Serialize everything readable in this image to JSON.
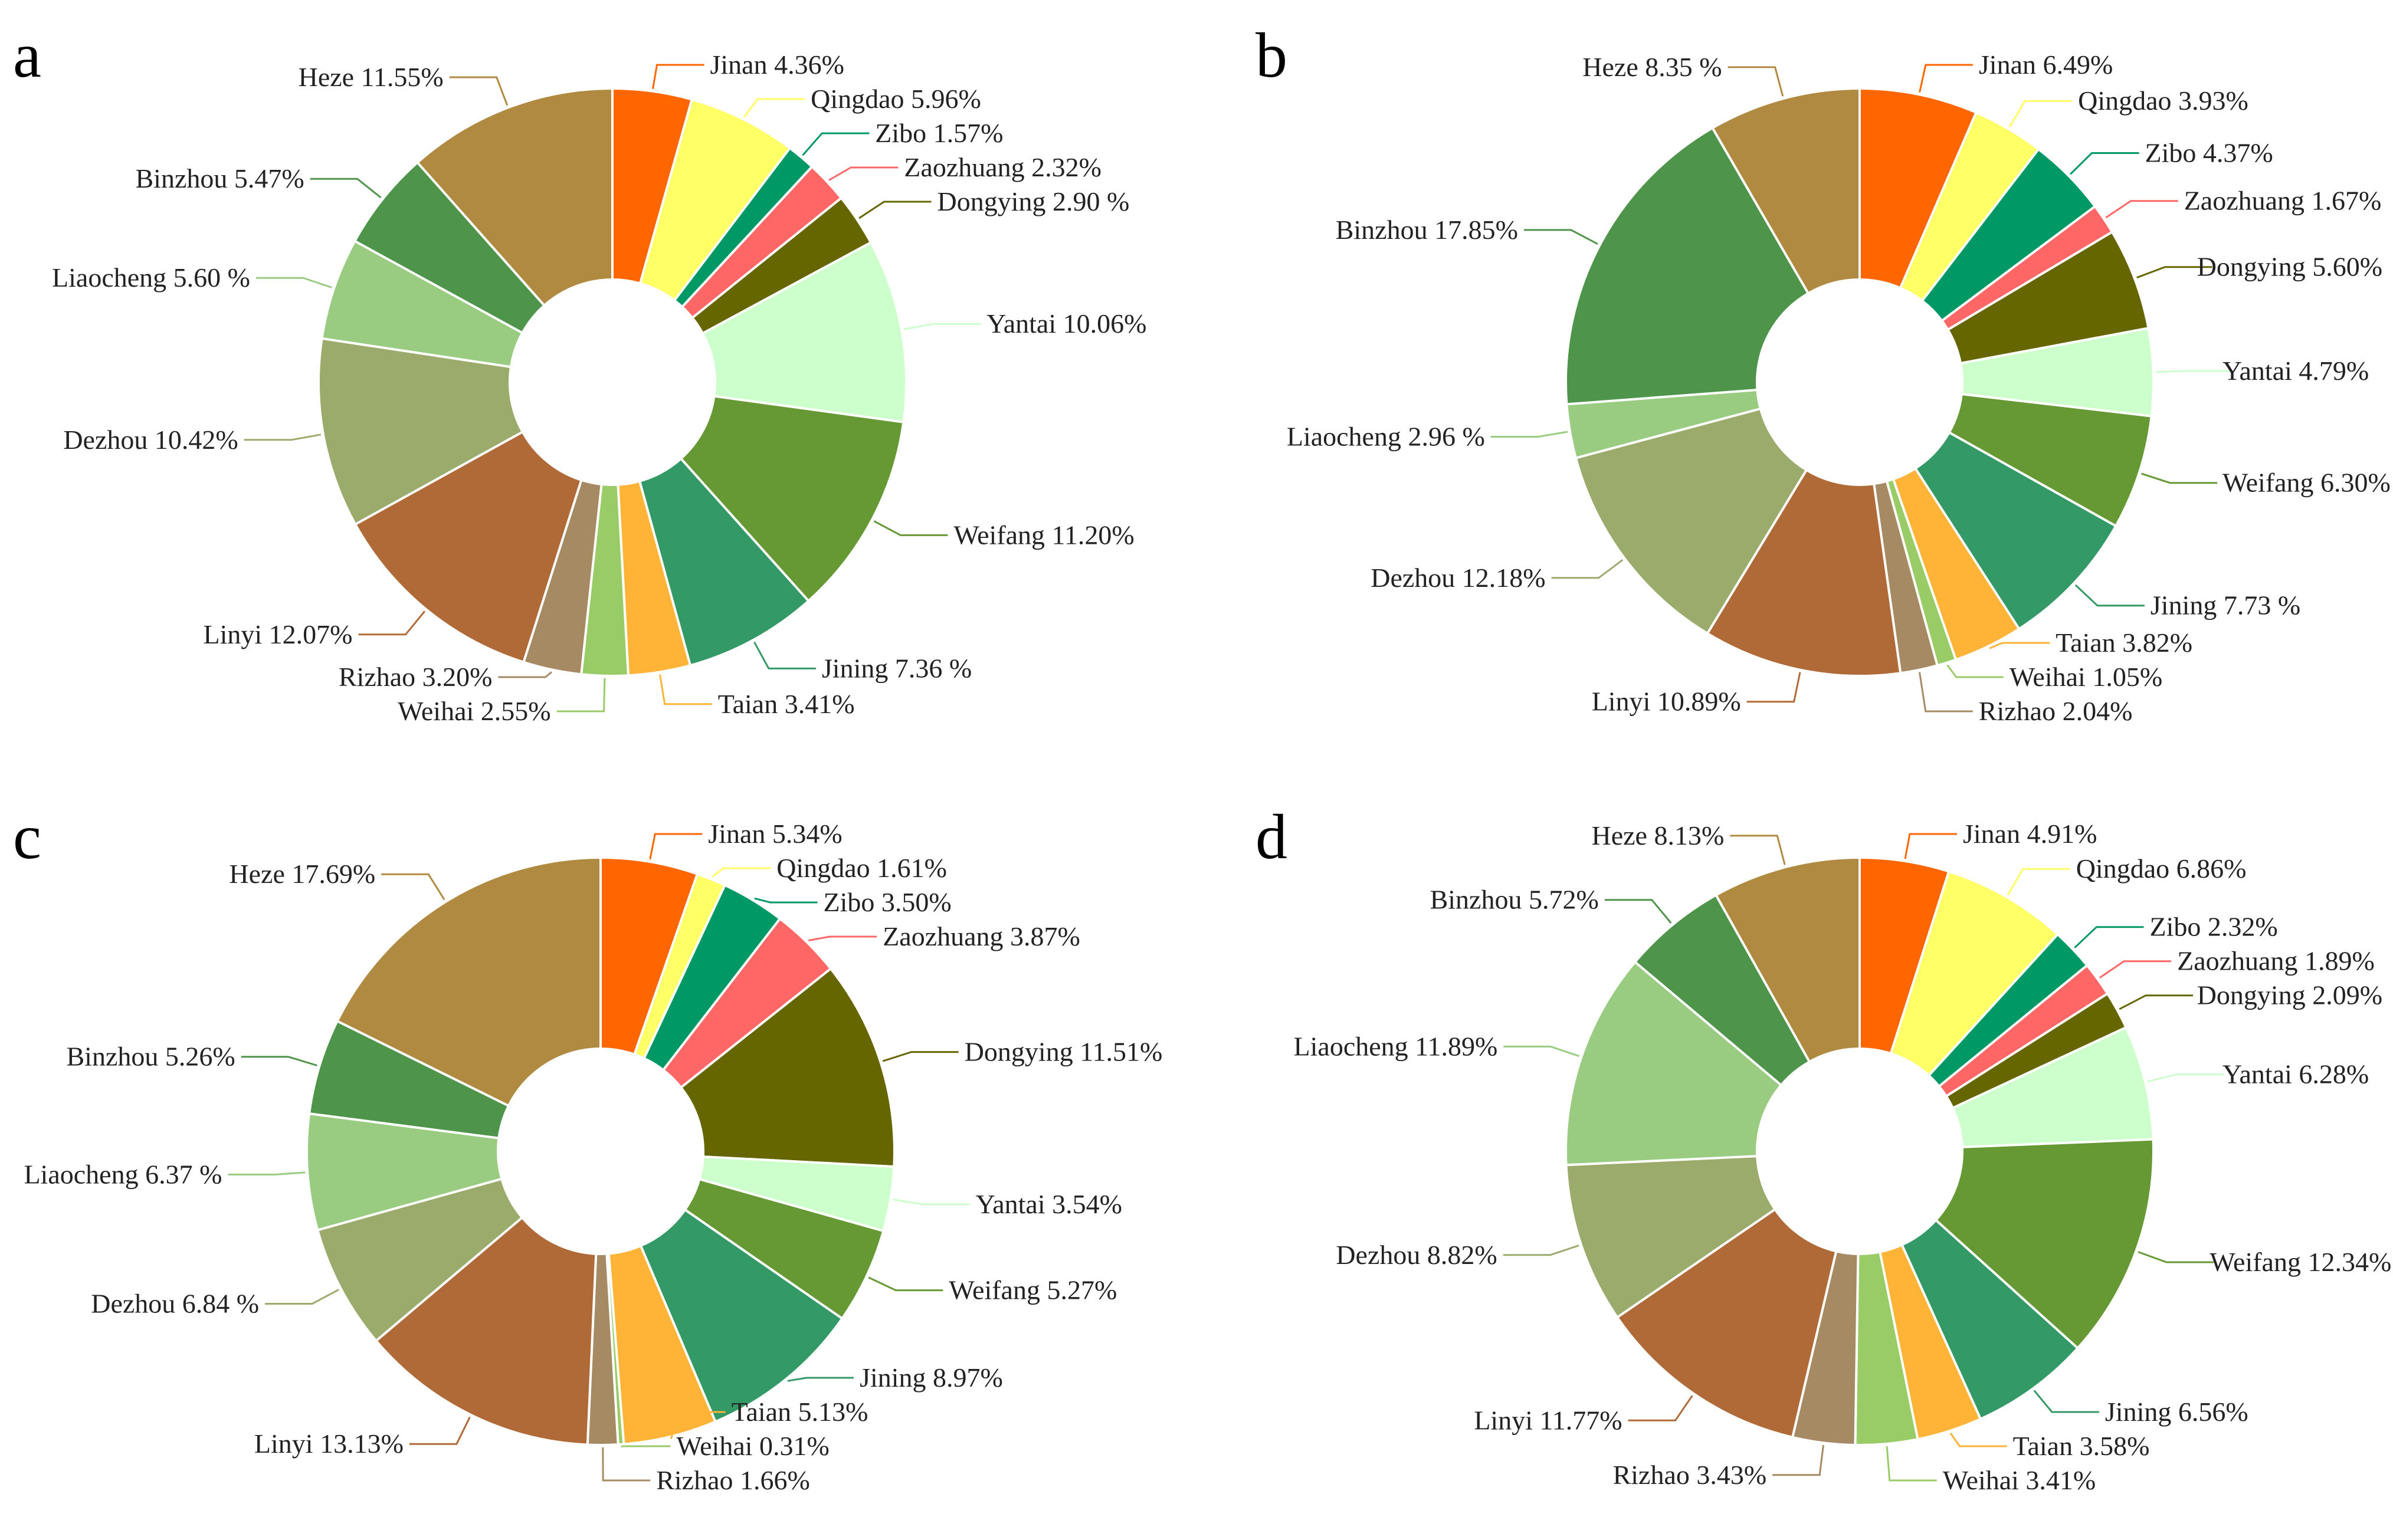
{
  "colors": {
    "Jinan": "#FF6600",
    "Qingdao": "#FFFF66",
    "Zibo": "#009966",
    "Zaozhuang": "#FF6666",
    "Dongying": "#666600",
    "Yantai": "#CCFFCC",
    "Weifang": "#669933",
    "Jining": "#339966",
    "Taian": "#FFB337",
    "Weihai": "#99CC66",
    "Rizhao": "#A68A64",
    "Linyi": "#B06A38",
    "Dezhou": "#9BAB6B",
    "Liaocheng": "#99CC80",
    "Binzhou": "#4E944A",
    "Heze": "#B08A40"
  },
  "chart_data": [
    {
      "type": "pie",
      "panel": "a",
      "donut": true,
      "categories": [
        "Jinan",
        "Qingdao",
        "Zibo",
        "Zaozhuang",
        "Dongying",
        "Yantai",
        "Weifang",
        "Jining",
        "Taian",
        "Weihai",
        "Rizhao",
        "Linyi",
        "Dezhou",
        "Liaocheng",
        "Binzhou",
        "Heze"
      ],
      "values": [
        4.36,
        5.96,
        1.57,
        2.32,
        2.9,
        10.06,
        11.2,
        7.36,
        3.41,
        2.55,
        3.2,
        12.07,
        10.42,
        5.6,
        5.47,
        11.55
      ],
      "labels": [
        "Jinan  4.36%",
        "Qingdao  5.96%",
        "Zibo  1.57%",
        "Zaozhuang  2.32%",
        "Dongying  2.90 %",
        "Yantai  10.06%",
        "Weifang 11.20%",
        "Jining  7.36 %",
        "Taian  3.41%",
        "Weihai 2.55%",
        "Rizhao 3.20%",
        "Linyi  12.07%",
        "Dezhou 10.42%",
        "Liaocheng  5.60 %",
        "Binzhou  5.47%",
        "Heze 11.55%"
      ]
    },
    {
      "type": "pie",
      "panel": "b",
      "donut": true,
      "categories": [
        "Jinan",
        "Qingdao",
        "Zibo",
        "Zaozhuang",
        "Dongying",
        "Yantai",
        "Weifang",
        "Jining",
        "Taian",
        "Weihai",
        "Rizhao",
        "Linyi",
        "Dezhou",
        "Liaocheng",
        "Binzhou",
        "Heze"
      ],
      "values": [
        6.49,
        3.93,
        4.37,
        1.67,
        5.6,
        4.79,
        6.3,
        7.73,
        3.82,
        1.05,
        2.04,
        10.89,
        12.18,
        2.96,
        17.85,
        8.35
      ],
      "labels": [
        "Jinan  6.49%",
        "Qingdao  3.93%",
        "Zibo  4.37%",
        "Zaozhuang  1.67%",
        "Dongying  5.60%",
        "Yantai  4.79%",
        "Weifang 6.30%",
        "Jining  7.73 %",
        "Taian  3.82%",
        "Weihai 1.05%",
        "Rizhao 2.04%",
        "Linyi  10.89%",
        "Dezhou 12.18%",
        "Liaocheng  2.96 %",
        "Binzhou  17.85%",
        "Heze 8.35 %"
      ]
    },
    {
      "type": "pie",
      "panel": "c",
      "donut": true,
      "categories": [
        "Jinan",
        "Qingdao",
        "Zibo",
        "Zaozhuang",
        "Dongying",
        "Yantai",
        "Weifang",
        "Jining",
        "Taian",
        "Weihai",
        "Rizhao",
        "Linyi",
        "Dezhou",
        "Liaocheng",
        "Binzhou",
        "Heze"
      ],
      "values": [
        5.34,
        1.61,
        3.5,
        3.87,
        11.51,
        3.54,
        5.27,
        8.97,
        5.13,
        0.31,
        1.66,
        13.13,
        6.84,
        6.37,
        5.26,
        17.69
      ],
      "labels": [
        "Jinan  5.34%",
        "Qingdao  1.61%",
        "Zibo  3.50%",
        "Zaozhuang  3.87%",
        "Dongying  11.51%",
        "Yantai  3.54%",
        "Weifang 5.27%",
        "Jining  8.97%",
        "Taian  5.13%",
        "Weihai 0.31%",
        "Rizhao 1.66%",
        "Linyi  13.13%",
        "Dezhou 6.84 %",
        "Liaocheng  6.37 %",
        "Binzhou  5.26%",
        "Heze 17.69%"
      ]
    },
    {
      "type": "pie",
      "panel": "d",
      "donut": true,
      "categories": [
        "Jinan",
        "Qingdao",
        "Zibo",
        "Zaozhuang",
        "Dongying",
        "Yantai",
        "Weifang",
        "Jining",
        "Taian",
        "Weihai",
        "Rizhao",
        "Linyi",
        "Dezhou",
        "Liaocheng",
        "Binzhou",
        "Heze"
      ],
      "values": [
        4.91,
        6.86,
        2.32,
        1.89,
        2.09,
        6.28,
        12.34,
        6.56,
        3.58,
        3.41,
        3.43,
        11.77,
        8.82,
        11.89,
        5.72,
        8.13
      ],
      "labels": [
        "Jinan  4.91%",
        "Qingdao  6.86%",
        "Zibo  2.32%",
        "Zaozhuang 1.89%",
        "Dongying  2.09%",
        "Yantai  6.28%",
        "Weifang 12.34%",
        "Jining  6.56%",
        "Taian  3.58%",
        "Weihai  3.41%",
        "Rizhao 3.43%",
        "Linyi  11.77%",
        "Dezhou  8.82%",
        "Liaocheng  11.89%",
        "Binzhou  5.72%",
        "Heze  8.13%"
      ]
    }
  ]
}
